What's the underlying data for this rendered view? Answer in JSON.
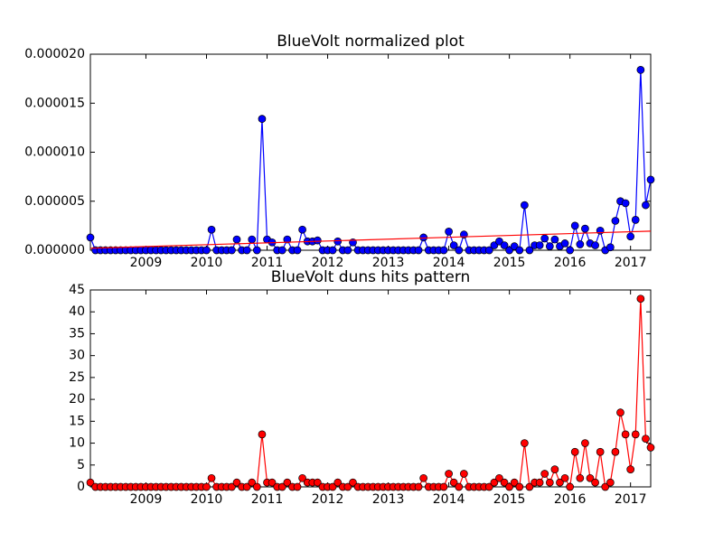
{
  "chart_data": [
    {
      "type": "line",
      "title": "BlueVolt normalized plot",
      "x": [
        2008.083,
        2008.167,
        2008.25,
        2008.333,
        2008.417,
        2008.5,
        2008.583,
        2008.667,
        2008.75,
        2008.833,
        2008.917,
        2009,
        2009.083,
        2009.167,
        2009.25,
        2009.333,
        2009.417,
        2009.5,
        2009.583,
        2009.667,
        2009.75,
        2009.833,
        2009.917,
        2010,
        2010.083,
        2010.167,
        2010.25,
        2010.333,
        2010.417,
        2010.5,
        2010.583,
        2010.667,
        2010.75,
        2010.833,
        2010.917,
        2011,
        2011.083,
        2011.167,
        2011.25,
        2011.333,
        2011.417,
        2011.5,
        2011.583,
        2011.667,
        2011.75,
        2011.833,
        2011.917,
        2012,
        2012.083,
        2012.167,
        2012.25,
        2012.333,
        2012.417,
        2012.5,
        2012.583,
        2012.667,
        2012.75,
        2012.833,
        2012.917,
        2013,
        2013.083,
        2013.167,
        2013.25,
        2013.333,
        2013.417,
        2013.5,
        2013.583,
        2013.667,
        2013.75,
        2013.833,
        2013.917,
        2014,
        2014.083,
        2014.167,
        2014.25,
        2014.333,
        2014.417,
        2014.5,
        2014.583,
        2014.667,
        2014.75,
        2014.833,
        2014.917,
        2015,
        2015.083,
        2015.167,
        2015.25,
        2015.333,
        2015.417,
        2015.5,
        2015.583,
        2015.667,
        2015.75,
        2015.833,
        2015.917,
        2016,
        2016.083,
        2016.167,
        2016.25,
        2016.333,
        2016.417,
        2016.5,
        2016.583,
        2016.667,
        2016.75,
        2016.833,
        2016.917,
        2017,
        2017.083,
        2017.167,
        2017.25,
        2017.333
      ],
      "series": [
        {
          "color": "#0000ff",
          "values": [
            1.3e-06,
            0,
            0,
            0,
            0,
            0,
            0,
            0,
            0,
            0,
            0,
            0,
            0,
            0,
            0,
            0,
            0,
            0,
            0,
            0,
            0,
            0,
            0,
            0,
            2.1e-06,
            0,
            0,
            0,
            0,
            1.1e-06,
            0,
            0,
            1.1e-06,
            0,
            1.34e-05,
            1.1e-06,
            8e-07,
            0,
            0,
            1.1e-06,
            0,
            0,
            2.1e-06,
            9e-07,
            9e-07,
            1e-06,
            0,
            0,
            0,
            9e-07,
            0,
            0,
            8e-07,
            0,
            0,
            0,
            0,
            0,
            0,
            0,
            0,
            0,
            0,
            0,
            0,
            0,
            1.3e-06,
            0,
            0,
            0,
            0,
            1.9e-06,
            5e-07,
            0,
            1.6e-06,
            0,
            0,
            0,
            0,
            0,
            5e-07,
            9e-07,
            5e-07,
            0,
            4e-07,
            0,
            4.6e-06,
            0,
            5e-07,
            5e-07,
            1.2e-06,
            4e-07,
            1.1e-06,
            4e-07,
            7e-07,
            0,
            2.5e-06,
            6e-07,
            2.2e-06,
            7e-07,
            5e-07,
            2e-06,
            0,
            3e-07,
            3e-06,
            5e-06,
            4.8e-06,
            1.4e-06,
            3.1e-06,
            1.84e-05,
            4.6e-06,
            7.2e-06
          ]
        }
      ],
      "trend": {
        "color": "#ff0000",
        "x": [
          2008.083,
          2017.333
        ],
        "values": [
          2e-07,
          1.95e-06
        ]
      },
      "xlim": [
        2008.083,
        2017.333
      ],
      "xticks": [
        2009,
        2010,
        2011,
        2012,
        2013,
        2014,
        2015,
        2016,
        2017
      ],
      "ylim": [
        0,
        2e-05
      ],
      "yticks": [
        {
          "value": 0,
          "label": "0.000000"
        },
        {
          "value": 5e-06,
          "label": "0.000005"
        },
        {
          "value": 1e-05,
          "label": "0.000010"
        },
        {
          "value": 1.5e-05,
          "label": "0.000015"
        },
        {
          "value": 2e-05,
          "label": "0.000020"
        }
      ]
    },
    {
      "type": "line",
      "title": "BlueVolt duns hits pattern",
      "x": [
        2008.083,
        2008.167,
        2008.25,
        2008.333,
        2008.417,
        2008.5,
        2008.583,
        2008.667,
        2008.75,
        2008.833,
        2008.917,
        2009,
        2009.083,
        2009.167,
        2009.25,
        2009.333,
        2009.417,
        2009.5,
        2009.583,
        2009.667,
        2009.75,
        2009.833,
        2009.917,
        2010,
        2010.083,
        2010.167,
        2010.25,
        2010.333,
        2010.417,
        2010.5,
        2010.583,
        2010.667,
        2010.75,
        2010.833,
        2010.917,
        2011,
        2011.083,
        2011.167,
        2011.25,
        2011.333,
        2011.417,
        2011.5,
        2011.583,
        2011.667,
        2011.75,
        2011.833,
        2011.917,
        2012,
        2012.083,
        2012.167,
        2012.25,
        2012.333,
        2012.417,
        2012.5,
        2012.583,
        2012.667,
        2012.75,
        2012.833,
        2012.917,
        2013,
        2013.083,
        2013.167,
        2013.25,
        2013.333,
        2013.417,
        2013.5,
        2013.583,
        2013.667,
        2013.75,
        2013.833,
        2013.917,
        2014,
        2014.083,
        2014.167,
        2014.25,
        2014.333,
        2014.417,
        2014.5,
        2014.583,
        2014.667,
        2014.75,
        2014.833,
        2014.917,
        2015,
        2015.083,
        2015.167,
        2015.25,
        2015.333,
        2015.417,
        2015.5,
        2015.583,
        2015.667,
        2015.75,
        2015.833,
        2015.917,
        2016,
        2016.083,
        2016.167,
        2016.25,
        2016.333,
        2016.417,
        2016.5,
        2016.583,
        2016.667,
        2016.75,
        2016.833,
        2016.917,
        2017,
        2017.083,
        2017.167,
        2017.25,
        2017.333
      ],
      "series": [
        {
          "color": "#ff0000",
          "values": [
            1,
            0,
            0,
            0,
            0,
            0,
            0,
            0,
            0,
            0,
            0,
            0,
            0,
            0,
            0,
            0,
            0,
            0,
            0,
            0,
            0,
            0,
            0,
            0,
            2,
            0,
            0,
            0,
            0,
            1,
            0,
            0,
            1,
            0,
            12,
            1,
            1,
            0,
            0,
            1,
            0,
            0,
            2,
            1,
            1,
            1,
            0,
            0,
            0,
            1,
            0,
            0,
            1,
            0,
            0,
            0,
            0,
            0,
            0,
            0,
            0,
            0,
            0,
            0,
            0,
            0,
            2,
            0,
            0,
            0,
            0,
            3,
            1,
            0,
            3,
            0,
            0,
            0,
            0,
            0,
            1,
            2,
            1,
            0,
            1,
            0,
            10,
            0,
            1,
            1,
            3,
            1,
            4,
            1,
            2,
            0,
            8,
            2,
            10,
            2,
            1,
            8,
            0,
            1,
            8,
            17,
            12,
            4,
            12,
            43,
            11,
            9
          ]
        }
      ],
      "xlim": [
        2008.083,
        2017.333
      ],
      "xticks": [
        2009,
        2010,
        2011,
        2012,
        2013,
        2014,
        2015,
        2016,
        2017
      ],
      "ylim": [
        0,
        45
      ],
      "yticks": [
        0,
        5,
        10,
        15,
        20,
        25,
        30,
        35,
        40,
        45
      ]
    }
  ]
}
